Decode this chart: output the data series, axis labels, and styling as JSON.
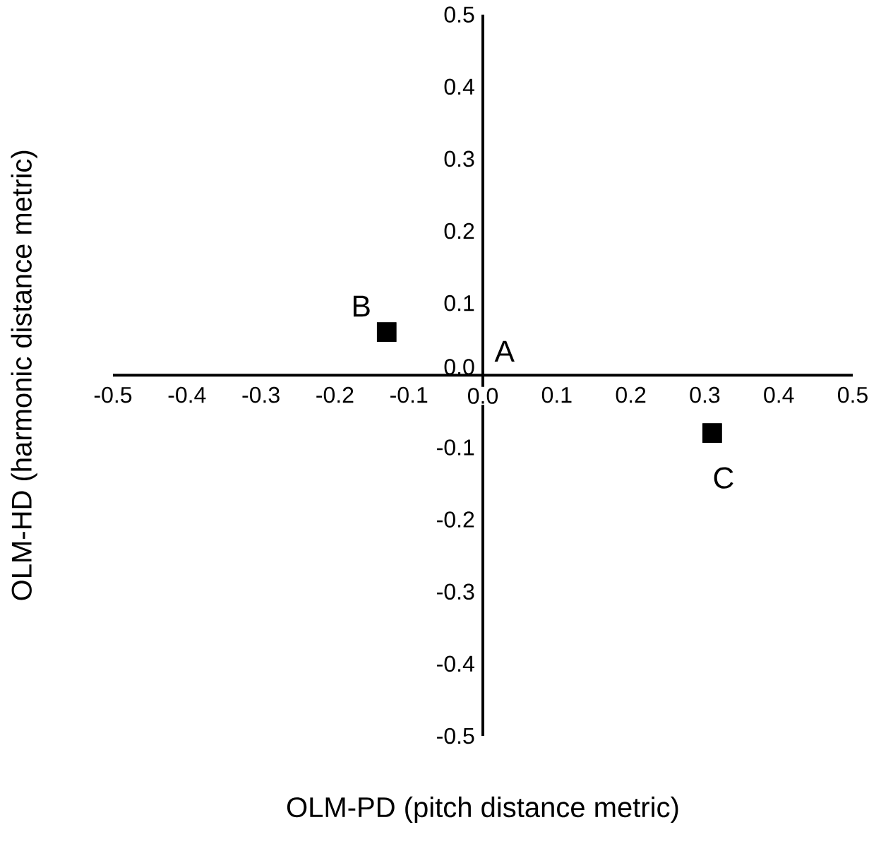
{
  "chart_data": {
    "type": "scatter",
    "xlabel": "OLM-PD (pitch distance metric)",
    "ylabel": "OLM-HD (harmonic distance metric)",
    "x": [
      -0.13,
      0.31
    ],
    "series": [
      {
        "color": "#000000",
        "values": [
          0.06,
          -0.08
        ]
      }
    ],
    "marker": "square",
    "xlim": [
      -0.5,
      0.5
    ],
    "ylim": [
      -0.5,
      0.5
    ],
    "xticks": [
      -0.5,
      -0.4,
      -0.3,
      -0.2,
      -0.1,
      {
        "value": 0,
        "label": "0.0"
      },
      0.1,
      0.2,
      0.3,
      0.4,
      0.5
    ],
    "yticks": [
      -0.5,
      -0.4,
      -0.3,
      -0.2,
      -0.1,
      {
        "value": 0,
        "label": "0.0"
      },
      0.1,
      0.2,
      0.3,
      0.4,
      0.5
    ],
    "annotations": [
      "A",
      {
        "text": "B",
        "x": -0.13,
        "y": 0.06
      },
      {
        "text": "C",
        "x": 0.31,
        "y": -0.08
      }
    ]
  }
}
